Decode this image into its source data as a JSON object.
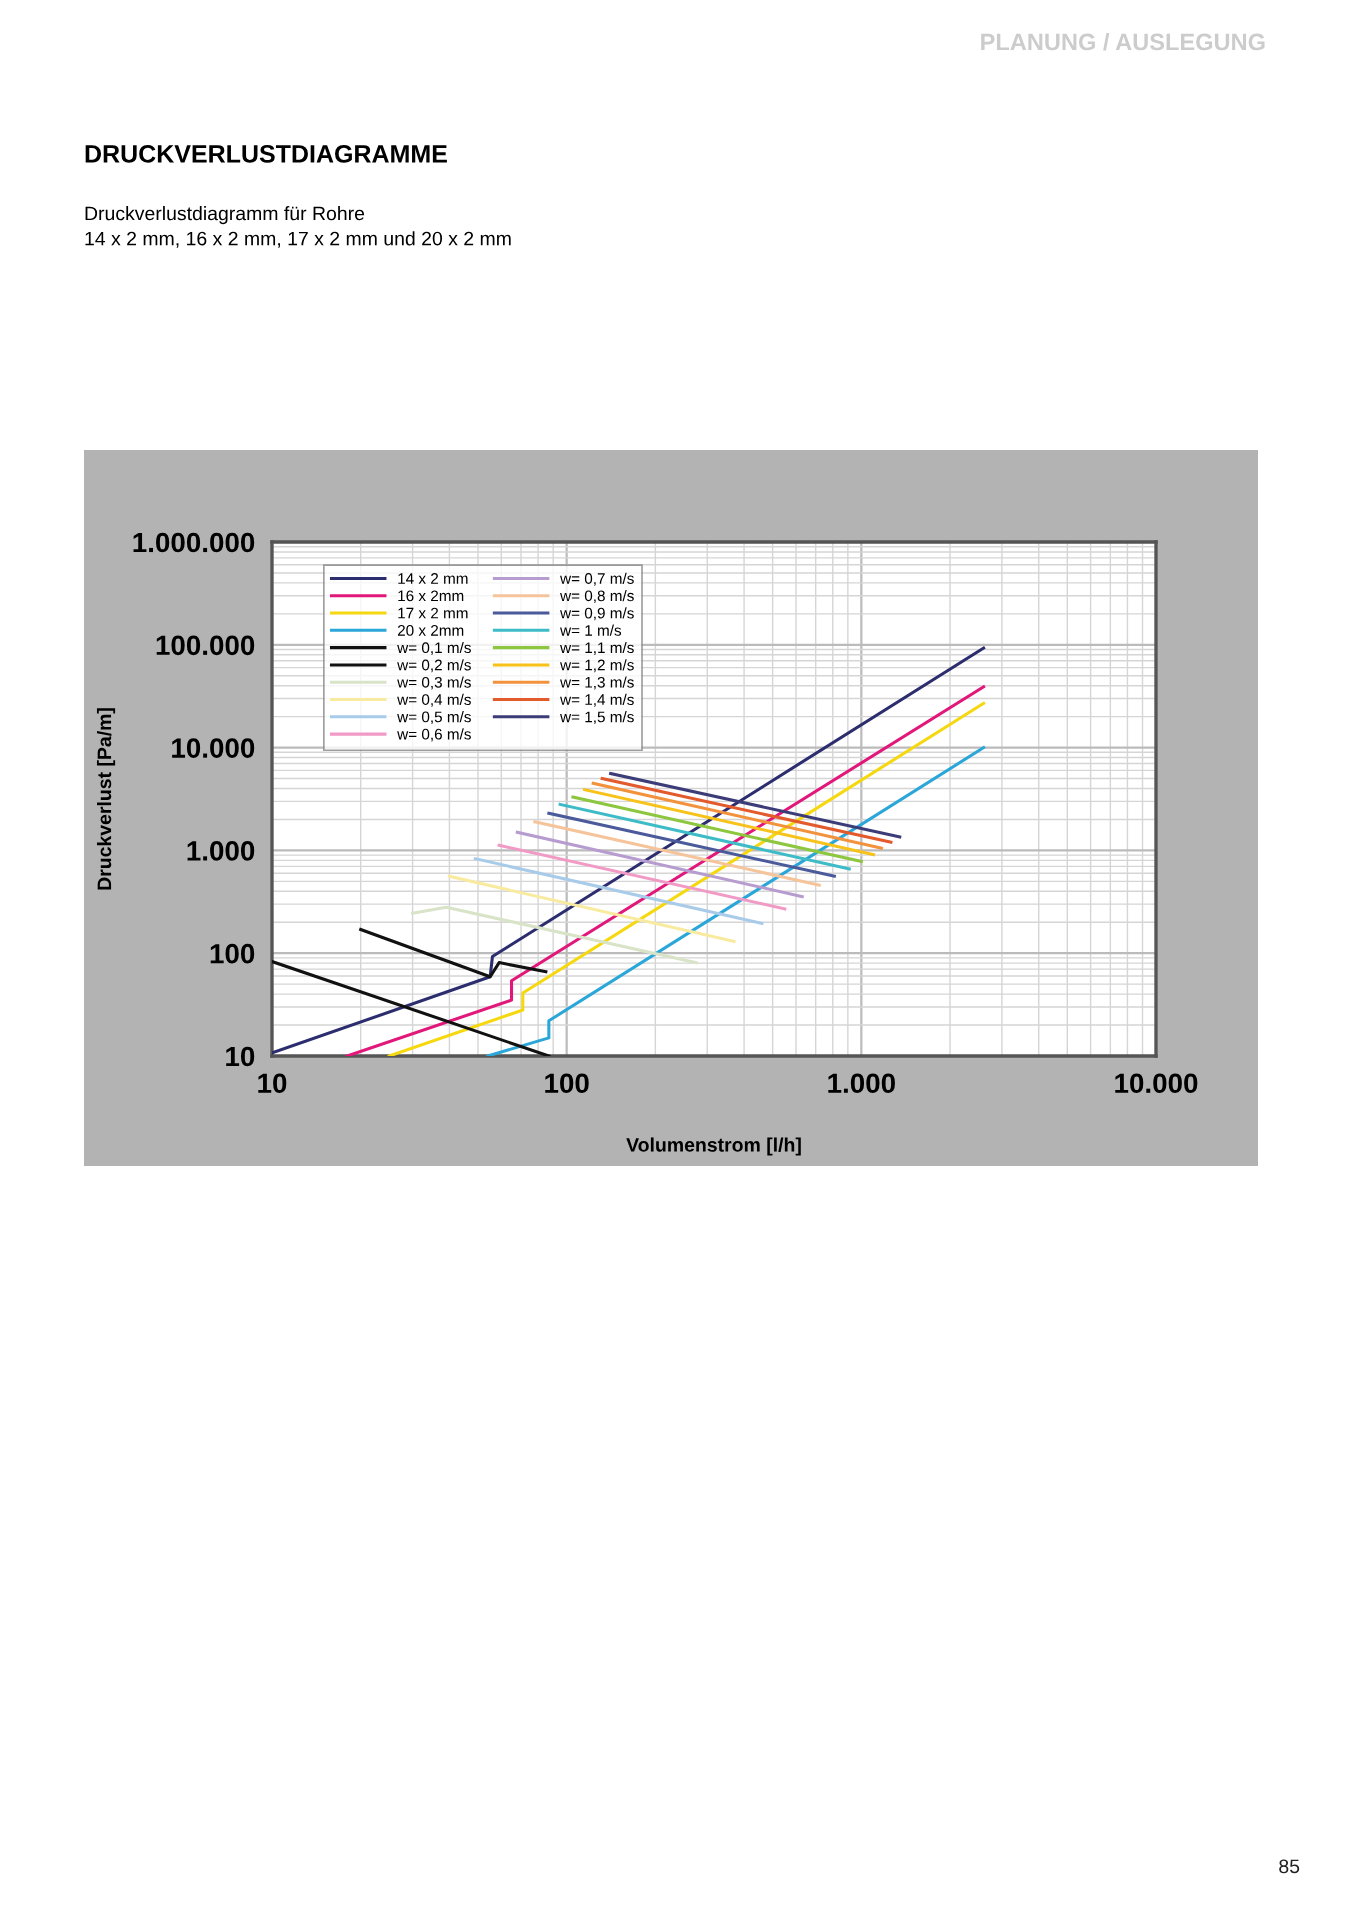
{
  "chart_data": {
    "type": "line",
    "title": "DRUCKVERLUSTDIAGRAMME",
    "subtitle": "Druckverlustdiagramm für Rohre\n14 x 2 mm, 16 x 2 mm, 17 x 2 mm und 20 x 2 mm",
    "xlabel": "Volumenstrom [l/h]",
    "ylabel": "Druckverlust [Pa/m]",
    "annotations": [
      "PLANUNG / AUSLEGUNG",
      "85"
    ],
    "log": "xy",
    "grid": true,
    "legend": "top left",
    "marker": "none",
    "line_style": "solid",
    "xlim": [
      10,
      10000
    ],
    "xticks": [
      10,
      100,
      {
        "value": 1000,
        "label": "1.000"
      },
      {
        "value": 10000,
        "label": "10.000"
      }
    ],
    "ylim": [
      10,
      1000000
    ],
    "yticks": [
      10,
      100,
      {
        "value": 1000,
        "label": "1.000"
      },
      {
        "value": 10000,
        "label": "10.000"
      },
      {
        "value": 100000,
        "label": "100.000"
      },
      {
        "value": 1000000,
        "label": "1.000.000"
      }
    ],
    "series": [
      {
        "name": "14 x 2 mm",
        "color": "#2b2d6e",
        "x": [
          10,
          55,
          56,
          2600
        ],
        "values": [
          10.7,
          59,
          93,
          93000
        ]
      },
      {
        "name": "16 x 2mm",
        "color": "#e2177a",
        "x": [
          18,
          65,
          65,
          2600
        ],
        "values": [
          10,
          35,
          54,
          39000
        ]
      },
      {
        "name": "17 x 2 mm",
        "color": "#f5d80f",
        "x": [
          25,
          71,
          71,
          2600
        ],
        "values": [
          10,
          28,
          41,
          27000
        ]
      },
      {
        "name": "20 x 2mm",
        "color": "#2aa6d8",
        "x": [
          54,
          87,
          87,
          2600
        ],
        "values": [
          10,
          15,
          22,
          10000
        ]
      },
      {
        "name": "w= 0,1 m/s",
        "color": "#111111",
        "x": [
          10,
          87
        ],
        "values": [
          83,
          10
        ]
      },
      {
        "name": "w= 0,2 m/s",
        "color": "#111111",
        "x": [
          20,
          55,
          59,
          85
        ],
        "values": [
          170,
          59,
          81,
          66
        ]
      },
      {
        "name": "w= 0,3 m/s",
        "color": "#d8e3c8",
        "x": [
          30,
          39,
          275
        ],
        "values": [
          245,
          280,
          81
        ]
      },
      {
        "name": "w= 0,4 m/s",
        "color": "#f8eba0",
        "x": [
          40,
          370
        ],
        "values": [
          560,
          130
        ]
      },
      {
        "name": "w= 0,5 m/s",
        "color": "#a9cbea",
        "x": [
          49,
          460
        ],
        "values": [
          830,
          195
        ]
      },
      {
        "name": "w= 0,6 m/s",
        "color": "#f29ac6",
        "x": [
          59,
          550
        ],
        "values": [
          1120,
          270
        ]
      },
      {
        "name": "w= 0,7 m/s",
        "color": "#b79ccf",
        "x": [
          68,
          630
        ],
        "values": [
          1500,
          355
        ]
      },
      {
        "name": "w= 0,8 m/s",
        "color": "#f5c49a",
        "x": [
          78,
          720
        ],
        "values": [
          1900,
          460
        ]
      },
      {
        "name": "w= 0,9 m/s",
        "color": "#4a5a9a",
        "x": [
          87,
          810
        ],
        "values": [
          2300,
          560
        ]
      },
      {
        "name": "w= 1 m/s",
        "color": "#3dbcc8",
        "x": [
          95,
          910
        ],
        "values": [
          2800,
          660
        ]
      },
      {
        "name": "w= 1,1 m/s",
        "color": "#8dc63f",
        "x": [
          105,
          1000
        ],
        "values": [
          3300,
          780
        ]
      },
      {
        "name": "w= 1,2 m/s",
        "color": "#f7c21a",
        "x": [
          115,
          1100
        ],
        "values": [
          3900,
          910
        ]
      },
      {
        "name": "w= 1,3 m/s",
        "color": "#f3923c",
        "x": [
          123,
          1170
        ],
        "values": [
          4500,
          1050
        ]
      },
      {
        "name": "w= 1,4 m/s",
        "color": "#e35a2c",
        "x": [
          132,
          1260
        ],
        "values": [
          5000,
          1200
        ]
      },
      {
        "name": "w= 1,5 m/s",
        "color": "#3c3c78",
        "x": [
          141,
          1350
        ],
        "values": [
          5600,
          1350
        ]
      }
    ]
  }
}
